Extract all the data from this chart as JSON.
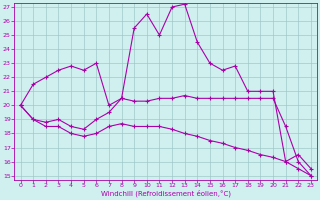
{
  "line1_x": [
    0,
    1,
    2,
    3,
    4,
    5,
    6,
    7,
    8,
    9,
    10,
    11,
    12,
    13,
    14,
    15,
    16,
    17,
    18,
    19,
    20,
    21,
    22,
    23
  ],
  "line1_y": [
    20.0,
    21.5,
    22.0,
    22.5,
    22.8,
    22.5,
    23.0,
    20.0,
    20.5,
    25.5,
    26.5,
    25.0,
    27.0,
    27.2,
    24.5,
    23.0,
    22.5,
    22.8,
    21.0,
    21.0,
    21.0,
    16.0,
    16.5,
    15.5
  ],
  "line2_x": [
    0,
    1,
    2,
    3,
    4,
    5,
    6,
    7,
    8,
    9,
    10,
    11,
    12,
    13,
    14,
    15,
    16,
    17,
    18,
    19,
    20,
    21,
    22,
    23
  ],
  "line2_y": [
    20.0,
    19.0,
    18.8,
    19.0,
    18.5,
    18.3,
    19.0,
    19.5,
    20.5,
    20.3,
    20.3,
    20.5,
    20.5,
    20.7,
    20.5,
    20.5,
    20.5,
    20.5,
    20.5,
    20.5,
    20.5,
    18.5,
    16.0,
    15.0
  ],
  "line3_x": [
    0,
    1,
    2,
    3,
    4,
    5,
    6,
    7,
    8,
    9,
    10,
    11,
    12,
    13,
    14,
    15,
    16,
    17,
    18,
    19,
    20,
    21,
    22,
    23
  ],
  "line3_y": [
    20.0,
    19.0,
    18.5,
    18.5,
    18.0,
    17.8,
    18.0,
    18.5,
    18.7,
    18.5,
    18.5,
    18.5,
    18.3,
    18.0,
    17.8,
    17.5,
    17.3,
    17.0,
    16.8,
    16.5,
    16.3,
    16.0,
    15.5,
    15.0
  ],
  "line_color": "#aa00aa",
  "bg_color": "#d0f0f0",
  "grid_color": "#a0c8c8",
  "text_color": "#aa00aa",
  "xlabel": "Windchill (Refroidissement éolien,°C)",
  "ylim": [
    15,
    27
  ],
  "xlim": [
    0,
    23
  ],
  "yticks": [
    15,
    16,
    17,
    18,
    19,
    20,
    21,
    22,
    23,
    24,
    25,
    26,
    27
  ],
  "xticks": [
    0,
    1,
    2,
    3,
    4,
    5,
    6,
    7,
    8,
    9,
    10,
    11,
    12,
    13,
    14,
    15,
    16,
    17,
    18,
    19,
    20,
    21,
    22,
    23
  ],
  "figwidth": 3.2,
  "figheight": 2.0,
  "dpi": 100
}
